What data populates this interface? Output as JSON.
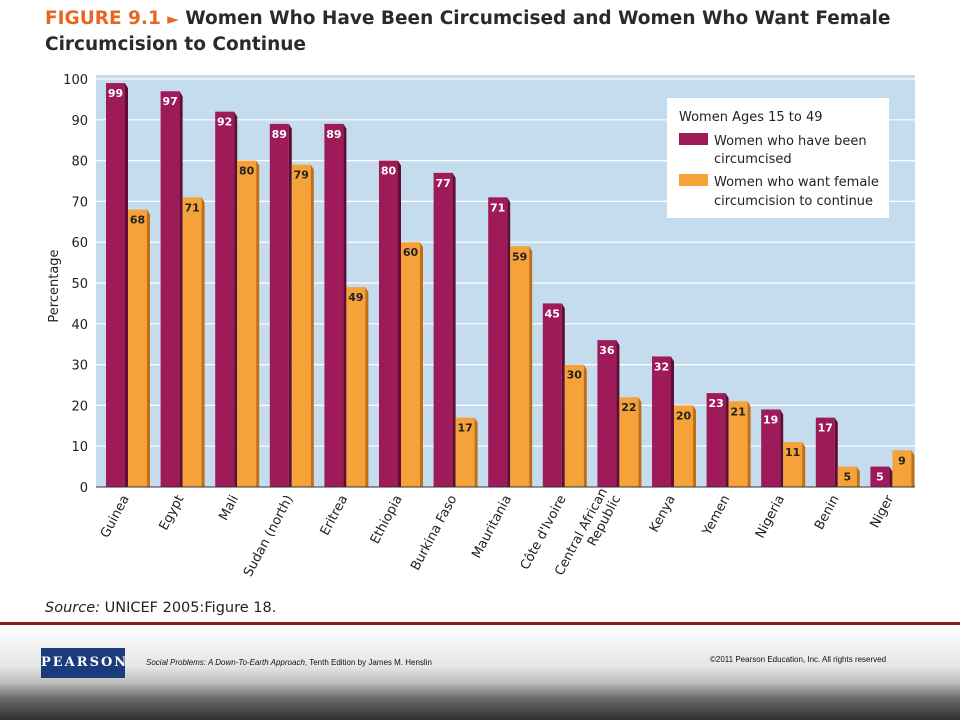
{
  "figure": {
    "number": "FIGURE 9.1",
    "arrow": "►",
    "title": "Women Who Have Been Circumcised and Women Who Want Female Circumcision to Continue"
  },
  "source": {
    "label": "Source:",
    "text": "UNICEF 2005:Figure 18."
  },
  "colors": {
    "background": "#c5dcef",
    "grid": "#ffffff",
    "circumcised": "#9e1a58",
    "circumcised_side": "#5e0e33",
    "want_continue": "#f5a23a",
    "want_continue_side": "#c26e14"
  },
  "chart_data": {
    "type": "bar",
    "title": "",
    "xlabel": "",
    "ylabel": "Percentage",
    "ylim": [
      0,
      100
    ],
    "yticks": [
      0,
      10,
      20,
      30,
      40,
      50,
      60,
      70,
      80,
      90,
      100
    ],
    "grid": true,
    "legend_position": "top-right",
    "legend_title": "Women Ages 15 to 49",
    "categories": [
      "Guinea",
      "Egypt",
      "Mali",
      "Sudan (north)",
      "Eritrea",
      "Ethiopia",
      "Burkina Faso",
      "Mauritania",
      "Côte d'Ivoire",
      "Central African Republic",
      "Kenya",
      "Yemen",
      "Nigeria",
      "Benin",
      "Niger"
    ],
    "category_lines": [
      [
        "Guinea"
      ],
      [
        "Egypt"
      ],
      [
        "Mali"
      ],
      [
        "Sudan (north)"
      ],
      [
        "Eritrea"
      ],
      [
        "Ethiopia"
      ],
      [
        "Burkina Faso"
      ],
      [
        "Mauritania"
      ],
      [
        "Côte d'Ivoire"
      ],
      [
        "Central African",
        "Republic"
      ],
      [
        "Kenya"
      ],
      [
        "Yemen"
      ],
      [
        "Nigeria"
      ],
      [
        "Benin"
      ],
      [
        "Niger"
      ]
    ],
    "series": [
      {
        "name": "Women who have been circumcised",
        "legend_lines": [
          "Women who have been",
          "circumcised"
        ],
        "values": [
          99,
          97,
          92,
          89,
          89,
          80,
          77,
          71,
          45,
          36,
          32,
          23,
          19,
          17,
          5
        ]
      },
      {
        "name": "Women who want female circumcision to continue",
        "legend_lines": [
          "Women who want female",
          "circumcision to continue"
        ],
        "values": [
          68,
          71,
          80,
          79,
          49,
          60,
          17,
          59,
          30,
          22,
          20,
          21,
          11,
          5,
          9
        ]
      }
    ]
  },
  "footer": {
    "logo": "PEARSON",
    "book_title": "Social Problems: A Down-To-Earth Approach",
    "book_rest": ", Tenth Edition by James M. Henslin",
    "copyright": "©2011 Pearson Education, Inc.  All rights reserved"
  }
}
